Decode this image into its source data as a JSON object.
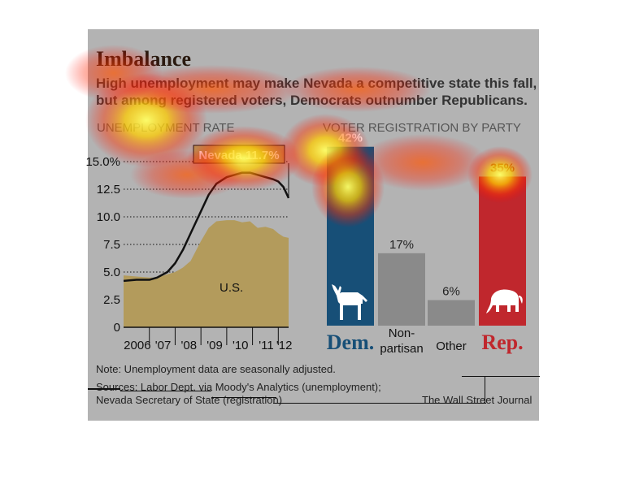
{
  "title": "Imbalance",
  "subtitle_line1": "High unemployment may make Nevada a competitive state this fall,",
  "subtitle_line2": "but among registered voters, Democrats outnumber Republicans.",
  "note": "Note: Unemployment data are seasonally adjusted.",
  "sources_line1": "Sources: Labor Dept. via Moody's Analytics (unemployment);",
  "sources_line2": "Nevada Secretary of State (registration)",
  "credit": "The Wall Street Journal",
  "colors": {
    "background": "#b3b3b3",
    "us_area": "#b39b5c",
    "nevada_line": "#111111",
    "dem": "#174f77",
    "rep": "#c0272d",
    "neutral_bar": "#8a8a8a"
  },
  "chart_data": [
    {
      "type": "line",
      "title": "UNEMPLOYMENT RATE",
      "x_tick_labels": [
        "2006",
        "'07",
        "'08",
        "'09",
        "'10",
        "'11",
        "'12"
      ],
      "y_tick_labels": [
        "0",
        "2.5",
        "5.0",
        "7.5",
        "10.0",
        "12.5",
        "15.0%"
      ],
      "ylim": [
        0,
        15
      ],
      "xlim": [
        2006,
        2012.4
      ],
      "grid": "horizontal dotted",
      "annotation": "Nevada 11.7%",
      "series": [
        {
          "name": "Nevada",
          "style": "line",
          "x": [
            2006.0,
            2006.5,
            2007.0,
            2007.3,
            2007.7,
            2008.0,
            2008.3,
            2008.6,
            2009.0,
            2009.3,
            2009.6,
            2010.0,
            2010.3,
            2010.6,
            2010.9,
            2011.2,
            2011.5,
            2011.8,
            2012.0,
            2012.2,
            2012.4
          ],
          "y": [
            4.2,
            4.3,
            4.3,
            4.5,
            5.0,
            5.8,
            7.0,
            8.5,
            10.5,
            12.0,
            13.0,
            13.6,
            13.8,
            14.0,
            14.0,
            13.8,
            13.6,
            13.4,
            13.2,
            12.7,
            11.7
          ]
        },
        {
          "name": "U.S.",
          "style": "area",
          "x": [
            2006.0,
            2006.5,
            2007.0,
            2007.3,
            2007.7,
            2008.0,
            2008.3,
            2008.6,
            2009.0,
            2009.3,
            2009.6,
            2010.0,
            2010.3,
            2010.6,
            2010.9,
            2011.2,
            2011.5,
            2011.8,
            2012.0,
            2012.2,
            2012.4
          ],
          "y": [
            4.7,
            4.6,
            4.5,
            4.5,
            4.8,
            5.0,
            5.4,
            6.0,
            7.8,
            9.0,
            9.6,
            9.7,
            9.7,
            9.5,
            9.6,
            9.0,
            9.1,
            8.9,
            8.5,
            8.2,
            8.1
          ]
        }
      ]
    },
    {
      "type": "bar",
      "title": "VOTER REGISTRATION BY PARTY",
      "categories": [
        "Dem.",
        "Non-partisan",
        "Other",
        "Rep."
      ],
      "values": [
        42,
        17,
        6,
        35
      ],
      "value_labels": [
        "42%",
        "17%",
        "6%",
        "35%"
      ],
      "category_label_lines": [
        [
          "Dem."
        ],
        [
          "Non-",
          "partisan"
        ],
        [
          "Other"
        ],
        [
          "Rep."
        ]
      ],
      "ylim": [
        0,
        45
      ]
    }
  ],
  "icons": [
    "donkey-icon",
    "elephant-icon"
  ]
}
